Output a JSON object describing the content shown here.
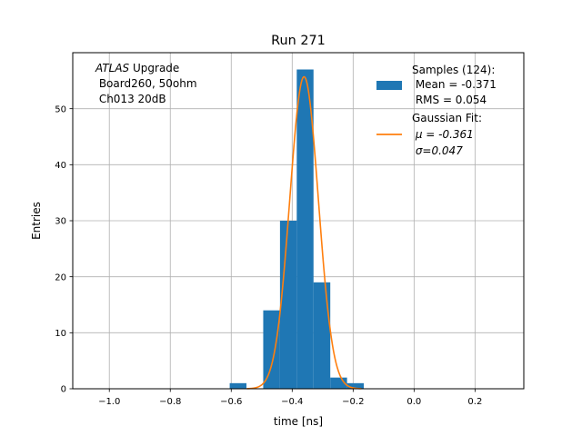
{
  "chart_data": {
    "type": "bar",
    "title": "Run 271",
    "xlabel": "time [ns]",
    "ylabel": "Entries",
    "xlim": [
      -1.12,
      0.36
    ],
    "ylim": [
      0,
      60
    ],
    "xticks": [
      -1.0,
      -0.8,
      -0.6,
      -0.4,
      -0.2,
      0.0,
      0.2
    ],
    "xtick_labels": [
      "−1.0",
      "−0.8",
      "−0.6",
      "−0.4",
      "−0.2",
      "0.0",
      "0.2"
    ],
    "yticks": [
      0,
      10,
      20,
      30,
      40,
      50
    ],
    "grid": true,
    "annotation": {
      "italic_word": "ATLAS",
      "line1_rest": " Upgrade",
      "line2": " Board260, 50ohm",
      "line3": " Ch013 20dB"
    },
    "histogram": {
      "name": "Samples (124):",
      "color": "#1f77b4",
      "bin_width": 0.055,
      "bins": [
        {
          "x0": -0.605,
          "count": 1
        },
        {
          "x0": -0.495,
          "count": 14
        },
        {
          "x0": -0.44,
          "count": 30
        },
        {
          "x0": -0.385,
          "count": 57
        },
        {
          "x0": -0.33,
          "count": 19
        },
        {
          "x0": -0.275,
          "count": 2
        },
        {
          "x0": -0.22,
          "count": 1
        }
      ]
    },
    "fit": {
      "name": "Gaussian Fit:",
      "color": "#ff7f0e",
      "mu": -0.361,
      "sigma": 0.047,
      "amplitude": 55.7
    },
    "legend": {
      "position": "top-right",
      "samples_lines": [
        "Samples (124):",
        " Mean = -0.371",
        " RMS = 0.054"
      ],
      "fit_lines": [
        "Gaussian Fit:",
        " μ = -0.361",
        " σ=0.047"
      ]
    }
  }
}
